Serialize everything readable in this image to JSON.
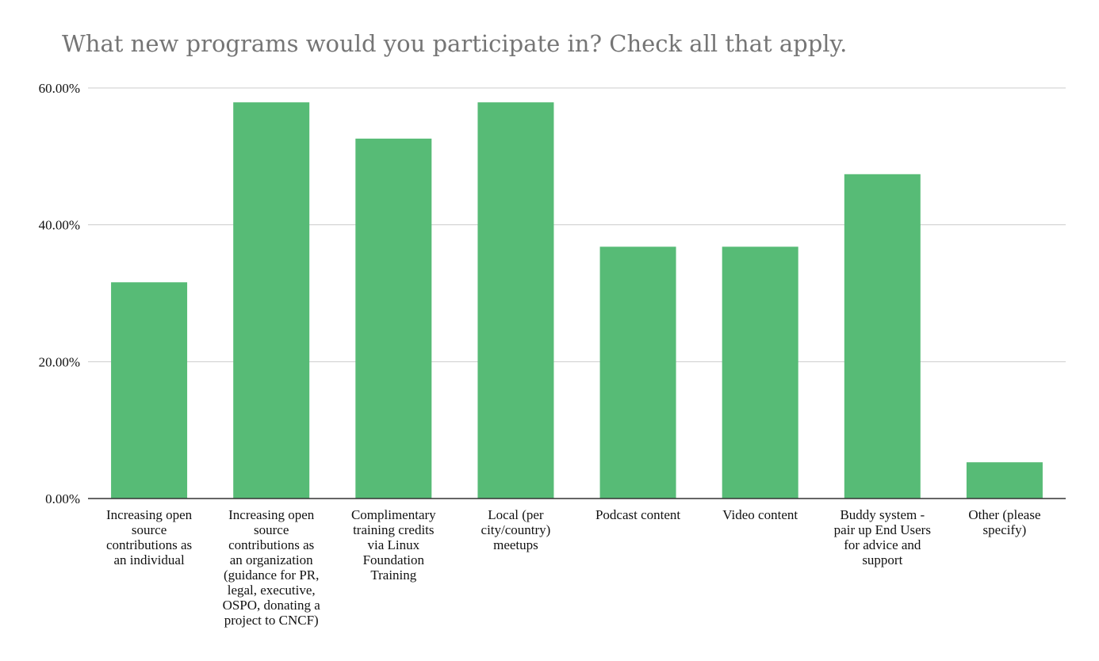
{
  "chart_data": {
    "type": "bar",
    "title": "What new programs would you participate in? Check all that apply.",
    "xlabel": "",
    "ylabel": "",
    "ylim": [
      0,
      60
    ],
    "y_ticks": [
      0,
      20,
      40,
      60
    ],
    "y_tick_labels": [
      "0.00%",
      "20.00%",
      "40.00%",
      "60.00%"
    ],
    "grid": true,
    "bar_color": "#57bb76",
    "categories": [
      [
        "Increasing open",
        "source",
        "contributions as",
        "an individual"
      ],
      [
        "Increasing open",
        "source",
        "contributions as",
        "an organization",
        "(guidance for PR,",
        "legal, executive,",
        "OSPO, donating a",
        "project to CNCF)"
      ],
      [
        "Complimentary",
        "training credits",
        "via Linux",
        "Foundation",
        "Training"
      ],
      [
        "Local (per",
        "city/country)",
        "meetups"
      ],
      [
        "Podcast content"
      ],
      [
        "Video content"
      ],
      [
        "Buddy system -",
        "pair up End Users",
        "for advice and",
        "support"
      ],
      [
        "Other (please",
        "specify)"
      ]
    ],
    "values": [
      31.6,
      57.9,
      52.6,
      57.9,
      36.8,
      36.8,
      47.4,
      5.3
    ]
  }
}
